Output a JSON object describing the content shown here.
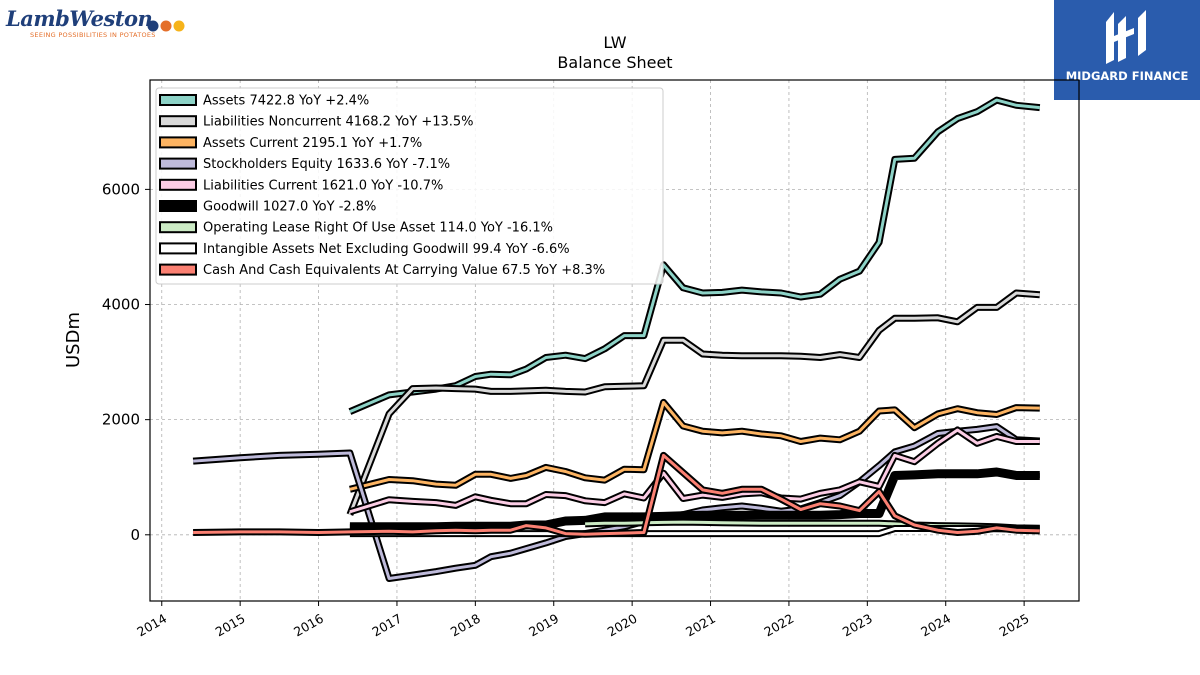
{
  "branding": {
    "company_logo_text": "LambWeston",
    "company_tagline": "SEEING POSSIBILITIES IN POTATOES",
    "publisher_name": "MIDGARD FINANCE",
    "colors": {
      "publisher_bg": "#2a5cad",
      "company_text": "#1f3f7a",
      "company_accent": "#e46f2a"
    }
  },
  "chart_data": {
    "type": "line",
    "title": "LW",
    "subtitle": "Balance  Sheet",
    "xlabel": "",
    "ylabel": "USDm",
    "ylim": [
      -1150,
      7900
    ],
    "xlim": [
      2013.85,
      2025.7
    ],
    "yticks": [
      0,
      2000,
      4000,
      6000
    ],
    "xticks": [
      2014,
      2015,
      2016,
      2017,
      2018,
      2019,
      2020,
      2021,
      2022,
      2023,
      2024,
      2025
    ],
    "grid": true,
    "legend_position": "top-left",
    "series": [
      {
        "name": "Assets",
        "legend_label": "Assets  7422.8 YoY +2.4%",
        "color": "#8dd3c7",
        "x": [
          2016.4,
          2016.9,
          2017.2,
          2017.5,
          2017.75,
          2018.0,
          2018.2,
          2018.45,
          2018.65,
          2018.9,
          2019.15,
          2019.4,
          2019.65,
          2019.9,
          2020.15,
          2020.4,
          2020.65,
          2020.9,
          2021.15,
          2021.4,
          2021.65,
          2021.9,
          2022.15,
          2022.4,
          2022.65,
          2022.9,
          2023.15,
          2023.35,
          2023.6,
          2023.9,
          2024.15,
          2024.4,
          2024.65,
          2024.9,
          2025.2
        ],
        "y": [
          2140,
          2430,
          2480,
          2530,
          2590,
          2750,
          2790,
          2780,
          2880,
          3080,
          3120,
          3060,
          3230,
          3460,
          3460,
          4690,
          4290,
          4200,
          4210,
          4250,
          4220,
          4200,
          4130,
          4180,
          4440,
          4580,
          5080,
          6520,
          6540,
          7000,
          7230,
          7350,
          7550,
          7460,
          7420
        ]
      },
      {
        "name": "Liabilities Noncurrent",
        "legend_label": "Liabilities Noncurrent  4168.2 YoY +13.5%",
        "color": "#d9d9d9",
        "x": [
          2016.4,
          2016.9,
          2017.2,
          2017.5,
          2017.75,
          2018.0,
          2018.2,
          2018.45,
          2018.65,
          2018.9,
          2019.15,
          2019.4,
          2019.65,
          2019.9,
          2020.15,
          2020.4,
          2020.65,
          2020.9,
          2021.15,
          2021.4,
          2021.65,
          2021.9,
          2022.15,
          2022.4,
          2022.65,
          2022.9,
          2023.15,
          2023.35,
          2023.6,
          2023.9,
          2024.15,
          2024.4,
          2024.65,
          2024.9,
          2025.2
        ],
        "y": [
          350,
          2100,
          2540,
          2550,
          2540,
          2530,
          2490,
          2490,
          2500,
          2510,
          2490,
          2480,
          2570,
          2580,
          2590,
          3380,
          3380,
          3140,
          3120,
          3110,
          3110,
          3110,
          3100,
          3080,
          3130,
          3080,
          3550,
          3760,
          3760,
          3770,
          3700,
          3950,
          3950,
          4200,
          4170
        ]
      },
      {
        "name": "Assets Current",
        "legend_label": "Assets Current  2195.1 YoY +1.7%",
        "color": "#fdb462",
        "x": [
          2016.4,
          2016.9,
          2017.2,
          2017.5,
          2017.75,
          2018.0,
          2018.2,
          2018.45,
          2018.65,
          2018.9,
          2019.15,
          2019.4,
          2019.65,
          2019.9,
          2020.15,
          2020.4,
          2020.65,
          2020.9,
          2021.15,
          2021.4,
          2021.65,
          2021.9,
          2022.15,
          2022.4,
          2022.65,
          2022.9,
          2023.15,
          2023.35,
          2023.6,
          2023.9,
          2024.15,
          2024.4,
          2024.65,
          2024.9,
          2025.2
        ],
        "y": [
          790,
          960,
          940,
          880,
          860,
          1050,
          1050,
          980,
          1030,
          1170,
          1100,
          990,
          950,
          1140,
          1130,
          2300,
          1890,
          1800,
          1770,
          1800,
          1750,
          1720,
          1620,
          1680,
          1650,
          1800,
          2150,
          2170,
          1860,
          2100,
          2190,
          2120,
          2090,
          2210,
          2200
        ]
      },
      {
        "name": "Stockholders Equity",
        "legend_label": "Stockholders Equity  1633.6 YoY -7.1%",
        "color": "#bebada",
        "x": [
          2014.4,
          2015.0,
          2015.5,
          2016.0,
          2016.4,
          2016.9,
          2017.2,
          2017.5,
          2017.75,
          2018.0,
          2018.2,
          2018.45,
          2018.65,
          2018.9,
          2019.15,
          2019.4,
          2019.65,
          2019.9,
          2020.15,
          2020.4,
          2020.65,
          2020.9,
          2021.15,
          2021.4,
          2021.65,
          2021.9,
          2022.15,
          2022.4,
          2022.65,
          2022.9,
          2023.15,
          2023.35,
          2023.6,
          2023.9,
          2024.15,
          2024.4,
          2024.65,
          2024.9,
          2025.2
        ],
        "y": [
          1280,
          1340,
          1380,
          1400,
          1420,
          -760,
          -700,
          -640,
          -580,
          -530,
          -380,
          -320,
          -240,
          -140,
          -30,
          20,
          80,
          140,
          230,
          290,
          350,
          430,
          470,
          500,
          460,
          410,
          450,
          560,
          680,
          920,
          1200,
          1440,
          1540,
          1760,
          1800,
          1830,
          1880,
          1650,
          1630
        ]
      },
      {
        "name": "Liabilities Current",
        "legend_label": "Liabilities Current  1621.0 YoY -10.7%",
        "color": "#fccde5",
        "x": [
          2016.4,
          2016.9,
          2017.2,
          2017.5,
          2017.75,
          2018.0,
          2018.2,
          2018.45,
          2018.65,
          2018.9,
          2019.15,
          2019.4,
          2019.65,
          2019.9,
          2020.15,
          2020.4,
          2020.65,
          2020.9,
          2021.15,
          2021.4,
          2021.65,
          2021.9,
          2022.15,
          2022.4,
          2022.65,
          2022.9,
          2023.15,
          2023.35,
          2023.6,
          2023.9,
          2024.15,
          2024.4,
          2024.65,
          2024.9,
          2025.2
        ],
        "y": [
          400,
          610,
          580,
          560,
          510,
          660,
          600,
          540,
          540,
          700,
          680,
          590,
          560,
          710,
          640,
          1070,
          630,
          690,
          650,
          710,
          730,
          640,
          620,
          720,
          780,
          920,
          840,
          1380,
          1270,
          1590,
          1820,
          1590,
          1710,
          1620,
          1620
        ]
      },
      {
        "name": "Goodwill",
        "legend_label": "Goodwill  1027.0 YoY -2.8%",
        "color": "#000000",
        "x": [
          2016.4,
          2016.9,
          2017.2,
          2017.5,
          2017.75,
          2018.0,
          2018.2,
          2018.45,
          2018.65,
          2018.9,
          2019.15,
          2019.4,
          2019.65,
          2019.9,
          2020.15,
          2020.4,
          2020.65,
          2020.9,
          2021.15,
          2021.4,
          2021.65,
          2021.9,
          2022.15,
          2022.4,
          2022.65,
          2022.9,
          2023.15,
          2023.35,
          2023.6,
          2023.9,
          2024.15,
          2024.4,
          2024.65,
          2024.9,
          2025.2
        ],
        "y": [
          140,
          140,
          140,
          140,
          150,
          150,
          150,
          150,
          170,
          170,
          240,
          250,
          310,
          310,
          310,
          320,
          330,
          340,
          340,
          340,
          340,
          340,
          340,
          340,
          350,
          370,
          370,
          1030,
          1040,
          1060,
          1060,
          1060,
          1090,
          1030,
          1030
        ]
      },
      {
        "name": "Operating Lease Right Of Use Asset",
        "legend_label": "Operating Lease Right Of Use Asset  114.0 YoY -16.1%",
        "color": "#ccebc5",
        "x": [
          2019.4,
          2019.65,
          2019.9,
          2020.15,
          2020.4,
          2020.65,
          2020.9,
          2021.15,
          2021.4,
          2021.65,
          2021.9,
          2022.15,
          2022.4,
          2022.65,
          2022.9,
          2023.15,
          2023.35,
          2023.6,
          2023.9,
          2024.15,
          2024.4,
          2024.65,
          2024.9,
          2025.2
        ],
        "y": [
          190,
          200,
          200,
          210,
          215,
          220,
          215,
          210,
          205,
          200,
          200,
          200,
          200,
          200,
          200,
          200,
          190,
          170,
          160,
          155,
          150,
          140,
          120,
          114
        ]
      },
      {
        "name": "Intangible Assets Net Excluding Goodwill",
        "legend_label": "Intangible Assets Net Excluding Goodwill  99.4 YoY -6.6%",
        "color": "#ffffff",
        "x": [
          2016.4,
          2016.9,
          2017.2,
          2017.5,
          2017.75,
          2018.0,
          2018.2,
          2018.45,
          2018.65,
          2018.9,
          2019.15,
          2019.4,
          2019.65,
          2019.9,
          2020.15,
          2020.4,
          2020.65,
          2020.9,
          2021.15,
          2021.4,
          2021.65,
          2021.9,
          2022.15,
          2022.4,
          2022.65,
          2022.9,
          2023.15,
          2023.35,
          2023.6,
          2023.9,
          2024.15,
          2024.4,
          2024.65,
          2024.9,
          2025.2
        ],
        "y": [
          20,
          20,
          20,
          20,
          20,
          20,
          20,
          20,
          20,
          20,
          20,
          20,
          20,
          20,
          20,
          20,
          20,
          20,
          20,
          20,
          20,
          20,
          20,
          20,
          20,
          20,
          20,
          110,
          110,
          110,
          110,
          110,
          105,
          100,
          99
        ]
      },
      {
        "name": "Cash And Cash Equivalents At Carrying Value",
        "legend_label": "Cash And Cash Equivalents At Carrying Value  67.5 YoY +8.3%",
        "color": "#fb8072",
        "x": [
          2014.4,
          2015.0,
          2015.5,
          2016.0,
          2016.4,
          2016.9,
          2017.2,
          2017.5,
          2017.75,
          2018.0,
          2018.2,
          2018.45,
          2018.65,
          2018.9,
          2019.15,
          2019.4,
          2019.65,
          2019.9,
          2020.15,
          2020.4,
          2020.65,
          2020.9,
          2021.15,
          2021.4,
          2021.65,
          2021.9,
          2022.15,
          2022.4,
          2022.65,
          2022.9,
          2023.15,
          2023.35,
          2023.6,
          2023.9,
          2024.15,
          2024.4,
          2024.65,
          2024.9,
          2025.2
        ],
        "y": [
          40,
          50,
          50,
          40,
          50,
          60,
          50,
          70,
          80,
          70,
          80,
          80,
          160,
          120,
          20,
          10,
          20,
          30,
          40,
          1380,
          1080,
          780,
          720,
          790,
          790,
          620,
          440,
          540,
          500,
          420,
          750,
          330,
          170,
          80,
          40,
          60,
          120,
          80,
          68
        ]
      }
    ]
  }
}
